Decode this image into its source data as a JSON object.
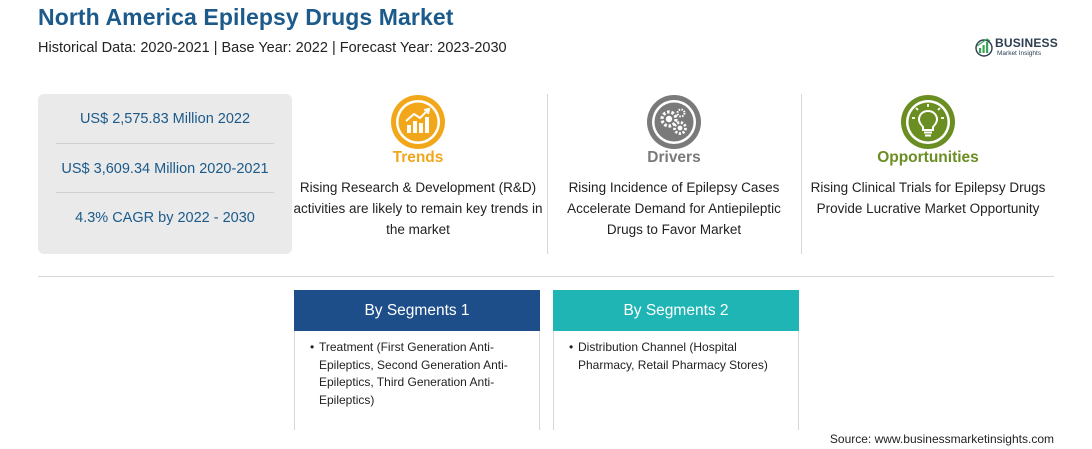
{
  "header": {
    "title": "North America Epilepsy Drugs Market",
    "subtitle": "Historical Data: 2020-2021 | Base Year: 2022 | Forecast Year: 2023-2030"
  },
  "logo": {
    "main": "BUSINESS",
    "sub": "Market Insights"
  },
  "stats": [
    "US$ 2,575.83 Million 2022",
    "US$ 3,609.34 Million 2020-2021",
    "4.3% CAGR by 2022 - 2030"
  ],
  "columns": [
    {
      "icon": "chart-growth-icon",
      "title": "Trends",
      "color": "#f2a71b",
      "text": "Rising Research & Development (R&D) activities are likely to remain key trends in the market"
    },
    {
      "icon": "gears-icon",
      "title": "Drivers",
      "color": "#7a7a7a",
      "text": "Rising Incidence of Epilepsy Cases Accelerate Demand for Antiepileptic Drugs to Favor Market"
    },
    {
      "icon": "lightbulb-icon",
      "title": "Opportunities",
      "color": "#6b8e23",
      "text": "Rising Clinical Trials for Epilepsy Drugs Provide Lucrative Market Opportunity"
    }
  ],
  "segments": [
    {
      "title": "By Segments 1",
      "color": "#1d4e89",
      "text": "Treatment (First Generation Anti-Epileptics, Second Generation Anti-Epileptics, Third Generation Anti-Epileptics)"
    },
    {
      "title": "By Segments 2",
      "color": "#1fb5b5",
      "text": "Distribution Channel (Hospital Pharmacy, Retail Pharmacy Stores)"
    }
  ],
  "source": "Source: www.businessmarketinsights.com"
}
